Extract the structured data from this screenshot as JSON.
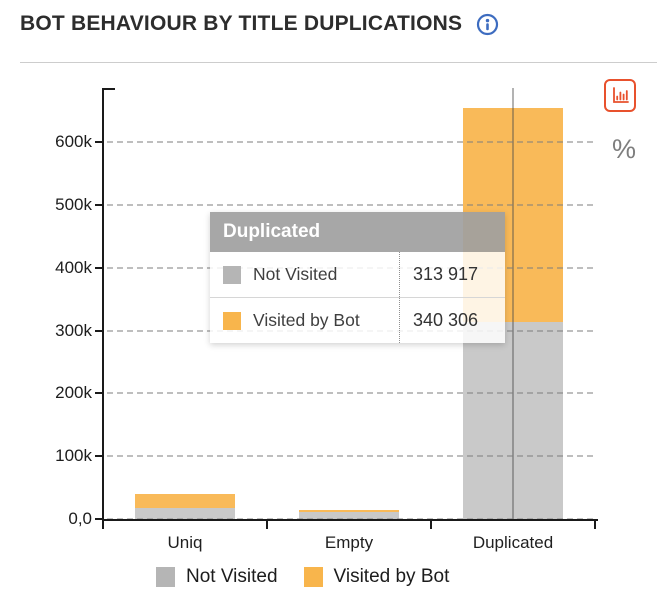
{
  "header": {
    "title": "BOT BEHAVIOUR BY TITLE DUPLICATIONS"
  },
  "controls": {
    "chart_view_icon": "bar-chart-icon",
    "percent_label": "%"
  },
  "chart_data": {
    "type": "bar",
    "stacked": true,
    "title": "BOT BEHAVIOUR BY TITLE DUPLICATIONS",
    "categories": [
      "Uniq",
      "Empty",
      "Duplicated"
    ],
    "series": [
      {
        "name": "Not Visited",
        "color": "#c9c9c9",
        "values": [
          17500,
          11000,
          313917
        ]
      },
      {
        "name": "Visited by Bot",
        "color": "#f9ba59",
        "values": [
          22500,
          3000,
          340306
        ]
      }
    ],
    "ylim": [
      0,
      686000
    ],
    "yticks": [
      {
        "label": "0,0",
        "value": 0
      },
      {
        "label": "100k",
        "value": 100000
      },
      {
        "label": "200k",
        "value": 200000
      },
      {
        "label": "300k",
        "value": 300000
      },
      {
        "label": "400k",
        "value": 400000
      },
      {
        "label": "500k",
        "value": 500000
      },
      {
        "label": "600k",
        "value": 600000
      }
    ],
    "grid": "horizontal-dashed",
    "legend_position": "bottom",
    "hover_category": "Duplicated"
  },
  "tooltip": {
    "title": "Duplicated",
    "rows": [
      {
        "label": "Not Visited",
        "value": "313 917",
        "color": "#b5b5b5"
      },
      {
        "label": "Visited by Bot",
        "value": "340 306",
        "color": "#f8b54c"
      }
    ]
  },
  "legend": {
    "items": [
      {
        "label": "Not Visited",
        "color": "#b5b5b5"
      },
      {
        "label": "Visited by Bot",
        "color": "#f8b54c"
      }
    ]
  },
  "colors": {
    "accent_red": "#e8512d",
    "info_blue": "#3d6cc0",
    "axis": "#1a1a1a"
  }
}
